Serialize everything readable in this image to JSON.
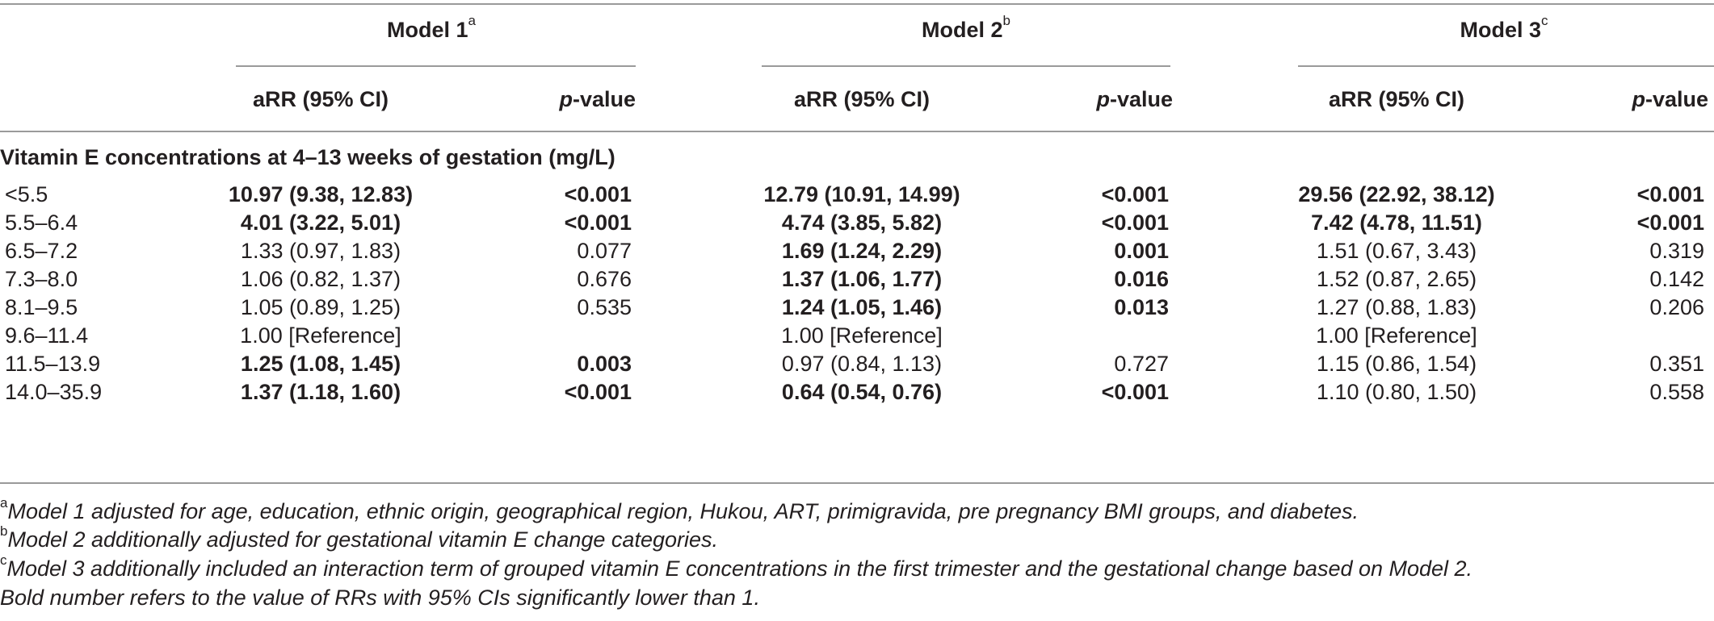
{
  "table": {
    "model_headers": [
      {
        "label": "Model 1",
        "sup": "a"
      },
      {
        "label": "Model 2",
        "sup": "b"
      },
      {
        "label": "Model 3",
        "sup": "c"
      }
    ],
    "sub_headers": {
      "arr": "aRR (95% CI)",
      "p_italic": "p",
      "p_rest": "-value"
    },
    "section_title": "Vitamin E concentrations at 4–13 weeks of gestation (mg/L)",
    "rows": [
      {
        "range": "<5.5",
        "m1_arr": "10.97 (9.38, 12.83)",
        "m1_arr_bold": true,
        "m1_p": "<0.001",
        "m1_p_bold": true,
        "m2_arr": "12.79 (10.91, 14.99)",
        "m2_arr_bold": true,
        "m2_p": "<0.001",
        "m2_p_bold": true,
        "m3_arr": "29.56 (22.92, 38.12)",
        "m3_arr_bold": true,
        "m3_p": "<0.001",
        "m3_p_bold": true
      },
      {
        "range": "5.5–6.4",
        "m1_arr": "4.01 (3.22, 5.01)",
        "m1_arr_bold": true,
        "m1_p": "<0.001",
        "m1_p_bold": true,
        "m2_arr": "4.74 (3.85, 5.82)",
        "m2_arr_bold": true,
        "m2_p": "<0.001",
        "m2_p_bold": true,
        "m3_arr": "7.42 (4.78, 11.51)",
        "m3_arr_bold": true,
        "m3_p": "<0.001",
        "m3_p_bold": true
      },
      {
        "range": "6.5–7.2",
        "m1_arr": "1.33 (0.97, 1.83)",
        "m1_arr_bold": false,
        "m1_p": "0.077",
        "m1_p_bold": false,
        "m2_arr": "1.69 (1.24, 2.29)",
        "m2_arr_bold": true,
        "m2_p": "0.001",
        "m2_p_bold": true,
        "m3_arr": "1.51 (0.67, 3.43)",
        "m3_arr_bold": false,
        "m3_p": "0.319",
        "m3_p_bold": false
      },
      {
        "range": "7.3–8.0",
        "m1_arr": "1.06 (0.82, 1.37)",
        "m1_arr_bold": false,
        "m1_p": "0.676",
        "m1_p_bold": false,
        "m2_arr": "1.37 (1.06, 1.77)",
        "m2_arr_bold": true,
        "m2_p": "0.016",
        "m2_p_bold": true,
        "m3_arr": "1.52 (0.87, 2.65)",
        "m3_arr_bold": false,
        "m3_p": "0.142",
        "m3_p_bold": false
      },
      {
        "range": "8.1–9.5",
        "m1_arr": "1.05 (0.89, 1.25)",
        "m1_arr_bold": false,
        "m1_p": "0.535",
        "m1_p_bold": false,
        "m2_arr": "1.24 (1.05, 1.46)",
        "m2_arr_bold": true,
        "m2_p": "0.013",
        "m2_p_bold": true,
        "m3_arr": "1.27 (0.88, 1.83)",
        "m3_arr_bold": false,
        "m3_p": "0.206",
        "m3_p_bold": false
      },
      {
        "range": "9.6–11.4",
        "m1_arr": "1.00 [Reference]",
        "m1_arr_bold": false,
        "m1_p": "",
        "m1_p_bold": false,
        "m2_arr": "1.00 [Reference]",
        "m2_arr_bold": false,
        "m2_p": "",
        "m2_p_bold": false,
        "m3_arr": "1.00 [Reference]",
        "m3_arr_bold": false,
        "m3_p": "",
        "m3_p_bold": false
      },
      {
        "range": "11.5–13.9",
        "m1_arr": "1.25 (1.08, 1.45)",
        "m1_arr_bold": true,
        "m1_p": "0.003",
        "m1_p_bold": true,
        "m2_arr": "0.97 (0.84, 1.13)",
        "m2_arr_bold": false,
        "m2_p": "0.727",
        "m2_p_bold": false,
        "m3_arr": "1.15 (0.86, 1.54)",
        "m3_arr_bold": false,
        "m3_p": "0.351",
        "m3_p_bold": false
      },
      {
        "range": "14.0–35.9",
        "m1_arr": "1.37 (1.18, 1.60)",
        "m1_arr_bold": true,
        "m1_p": "<0.001",
        "m1_p_bold": true,
        "m2_arr": "0.64 (0.54, 0.76)",
        "m2_arr_bold": true,
        "m2_p": "<0.001",
        "m2_p_bold": true,
        "m3_arr": "1.10 (0.80, 1.50)",
        "m3_arr_bold": false,
        "m3_p": "0.558",
        "m3_p_bold": false
      }
    ]
  },
  "footnotes": [
    {
      "sup": "a",
      "text": "Model 1 adjusted for age, education, ethnic origin, geographical region, Hukou, ART, primigravida, pre pregnancy BMI groups, and diabetes."
    },
    {
      "sup": "b",
      "text": "Model 2 additionally adjusted for gestational vitamin E change categories."
    },
    {
      "sup": "c",
      "text": "Model 3 additionally included an interaction term of grouped vitamin E concentrations in the first trimester and the gestational change based on Model 2."
    },
    {
      "sup": "",
      "text": "Bold number refers to the value of RRs with 95% CIs significantly lower than 1."
    }
  ],
  "colors": {
    "text": "#231f20",
    "rule": "#9a9a9a"
  }
}
